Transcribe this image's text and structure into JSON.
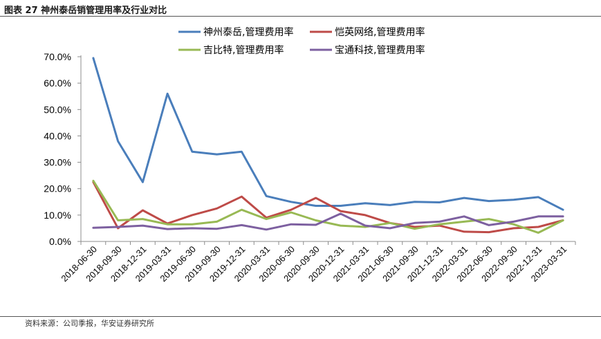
{
  "figure": {
    "title": "图表 27 神州泰岳销管理用率及行业对比",
    "source": "资料来源：公司季报，华安证券研究所"
  },
  "chart_data": {
    "type": "line",
    "categories": [
      "2018-06-30",
      "2018-09-30",
      "2018-12-31",
      "2019-03-31",
      "2019-06-30",
      "2019-09-30",
      "2019-12-31",
      "2020-03-31",
      "2020-06-30",
      "2020-09-30",
      "2020-12-31",
      "2021-03-31",
      "2021-06-30",
      "2021-09-30",
      "2021-12-31",
      "2022-03-31",
      "2022-06-30",
      "2022-09-30",
      "2022-12-31",
      "2023-03-31"
    ],
    "y_ticks": [
      "0.0%",
      "10.0%",
      "20.0%",
      "30.0%",
      "40.0%",
      "50.0%",
      "60.0%",
      "70.0%"
    ],
    "ylim": [
      0,
      70
    ],
    "legend_position": "top",
    "grid": false,
    "series": [
      {
        "name": "神州泰岳,管理费用率",
        "color": "#4a7ebb",
        "values": [
          69.5,
          38.0,
          22.5,
          56.0,
          34.0,
          33.0,
          34.0,
          17.2,
          15.0,
          13.5,
          13.5,
          14.5,
          13.8,
          15.0,
          14.8,
          16.5,
          15.3,
          15.8,
          16.8,
          12.0
        ]
      },
      {
        "name": "恺英网络,管理费用率",
        "color": "#be4b48",
        "values": [
          22.5,
          5.0,
          11.8,
          6.8,
          10.0,
          12.5,
          17.0,
          9.0,
          12.0,
          16.5,
          11.5,
          10.0,
          7.0,
          5.5,
          6.0,
          3.7,
          3.5,
          5.0,
          5.5,
          8.0
        ]
      },
      {
        "name": "吉比特,管理费用率",
        "color": "#98b954",
        "values": [
          23.0,
          8.0,
          8.5,
          6.5,
          6.5,
          7.5,
          12.0,
          8.5,
          11.0,
          8.0,
          6.0,
          5.5,
          7.0,
          4.8,
          6.5,
          7.5,
          8.5,
          6.5,
          3.3,
          8.0
        ]
      },
      {
        "name": "宝通科技,管理费用率",
        "color": "#7d60a0",
        "values": [
          5.2,
          5.5,
          6.0,
          4.7,
          5.0,
          4.8,
          6.2,
          4.5,
          6.5,
          6.3,
          10.5,
          6.0,
          5.0,
          7.0,
          7.5,
          9.5,
          6.2,
          7.5,
          9.5,
          9.5
        ]
      }
    ]
  }
}
